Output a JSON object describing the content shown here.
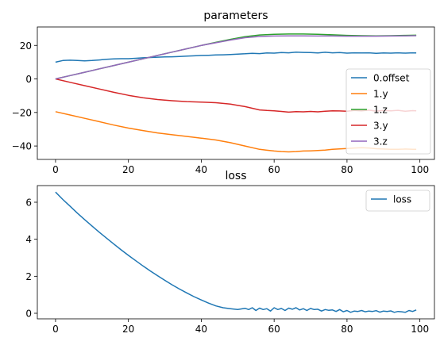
{
  "chart_data": [
    {
      "type": "line",
      "title": "parameters",
      "xlabel": "",
      "ylabel": "",
      "xlim": [
        -5,
        104
      ],
      "ylim": [
        -48,
        31
      ],
      "xticks": [
        0,
        20,
        40,
        60,
        80,
        100
      ],
      "yticks": [
        -40,
        -20,
        0,
        20
      ],
      "grid": false,
      "legend_position": "right",
      "series": [
        {
          "name": "0.offset",
          "color": "#1f77b4",
          "x": [
            0,
            2,
            4,
            6,
            8,
            10,
            12,
            14,
            16,
            18,
            20,
            22,
            24,
            26,
            28,
            30,
            32,
            34,
            36,
            38,
            40,
            42,
            44,
            46,
            48,
            50,
            52,
            54,
            56,
            58,
            60,
            62,
            64,
            66,
            68,
            70,
            72,
            74,
            76,
            78,
            80,
            82,
            84,
            86,
            88,
            90,
            92,
            94,
            96,
            98,
            99
          ],
          "y": [
            10,
            11,
            11.2,
            11,
            10.8,
            11,
            11.3,
            11.7,
            12,
            12.1,
            12.1,
            12.3,
            12.6,
            12.8,
            13,
            13.1,
            13.2,
            13.4,
            13.6,
            13.8,
            14,
            14.1,
            14.3,
            14.4,
            14.6,
            14.8,
            15,
            15.3,
            15.1,
            15.5,
            15.4,
            15.7,
            15.6,
            16,
            15.8,
            15.7,
            15.5,
            15.9,
            15.6,
            15.7,
            15.4,
            15.6,
            15.5,
            15.6,
            15.3,
            15.5,
            15.4,
            15.6,
            15.4,
            15.6,
            15.5
          ]
        },
        {
          "name": "1.y",
          "color": "#ff7f0e",
          "x": [
            0,
            4,
            8,
            12,
            16,
            20,
            24,
            28,
            32,
            36,
            40,
            44,
            48,
            52,
            56,
            58,
            60,
            62,
            64,
            66,
            68,
            70,
            72,
            74,
            76,
            78,
            80,
            82,
            84,
            86,
            88,
            90,
            92,
            94,
            96,
            98,
            99
          ],
          "y": [
            -19.5,
            -21.5,
            -23.5,
            -25.5,
            -27.5,
            -29.3,
            -30.8,
            -32.2,
            -33.3,
            -34.3,
            -35.3,
            -36.4,
            -38,
            -40,
            -42,
            -42.5,
            -43,
            -43.3,
            -43.5,
            -43.3,
            -43,
            -42.9,
            -42.7,
            -42.4,
            -42,
            -41.7,
            -41.5,
            -41.2,
            -41,
            -41.2,
            -41.6,
            -41.8,
            -42,
            -42,
            -41.8,
            -42,
            -42
          ]
        },
        {
          "name": "1.z",
          "color": "#2ca02c",
          "x": [
            0,
            4,
            8,
            12,
            16,
            20,
            24,
            28,
            32,
            36,
            40,
            44,
            48,
            52,
            56,
            60,
            64,
            68,
            72,
            76,
            80,
            84,
            88,
            92,
            96,
            99
          ],
          "y": [
            0,
            2,
            4,
            6,
            8,
            10,
            12,
            14,
            16,
            18,
            20,
            21.8,
            23.6,
            25.2,
            26.2,
            26.6,
            26.8,
            26.8,
            26.6,
            26.3,
            26,
            25.8,
            25.7,
            25.8,
            26,
            26.1
          ]
        },
        {
          "name": "3.y",
          "color": "#d62728",
          "x": [
            0,
            4,
            8,
            12,
            16,
            20,
            24,
            28,
            32,
            36,
            40,
            44,
            48,
            50,
            52,
            54,
            56,
            58,
            60,
            62,
            64,
            66,
            68,
            70,
            72,
            74,
            76,
            78,
            80,
            82,
            84,
            86,
            88,
            90,
            92,
            94,
            96,
            98,
            99
          ],
          "y": [
            0,
            -2,
            -4,
            -6,
            -8,
            -9.8,
            -11.2,
            -12.3,
            -13,
            -13.5,
            -13.8,
            -14.2,
            -15,
            -15.8,
            -16.5,
            -17.5,
            -18.5,
            -18.8,
            -19,
            -19.4,
            -19.8,
            -19.5,
            -19.6,
            -19.4,
            -19.6,
            -19.3,
            -19,
            -19.1,
            -19.3,
            -18.8,
            -19,
            -18.6,
            -19.2,
            -18.8,
            -19,
            -18.7,
            -19.3,
            -18.9,
            -19
          ]
        },
        {
          "name": "3.z",
          "color": "#9467bd",
          "x": [
            0,
            4,
            8,
            12,
            16,
            20,
            24,
            28,
            32,
            36,
            40,
            44,
            48,
            52,
            56,
            60,
            64,
            68,
            72,
            76,
            80,
            84,
            88,
            92,
            96,
            99
          ],
          "y": [
            0,
            2,
            4,
            6,
            8,
            10,
            12,
            14,
            16,
            18,
            20,
            21.6,
            23.2,
            24.6,
            25.3,
            25.6,
            25.7,
            25.7,
            25.6,
            25.6,
            25.5,
            25.5,
            25.5,
            25.6,
            25.7,
            25.8
          ]
        }
      ]
    },
    {
      "type": "line",
      "title": "loss",
      "xlabel": "",
      "ylabel": "",
      "xlim": [
        -5,
        104
      ],
      "ylim": [
        -0.3,
        6.9
      ],
      "xticks": [
        0,
        20,
        40,
        60,
        80,
        100
      ],
      "yticks": [
        0,
        2,
        4,
        6
      ],
      "grid": false,
      "legend_position": "top-right",
      "series": [
        {
          "name": "loss",
          "color": "#1f77b4",
          "x": [
            0,
            2,
            4,
            6,
            8,
            10,
            12,
            14,
            16,
            18,
            20,
            22,
            24,
            26,
            28,
            30,
            32,
            34,
            36,
            38,
            40,
            42,
            44,
            46,
            48,
            50,
            52,
            53,
            54,
            55,
            56,
            57,
            58,
            59,
            60,
            61,
            62,
            63,
            64,
            65,
            66,
            67,
            68,
            69,
            70,
            71,
            72,
            73,
            74,
            75,
            76,
            77,
            78,
            79,
            80,
            81,
            82,
            83,
            84,
            85,
            86,
            87,
            88,
            89,
            90,
            91,
            92,
            93,
            94,
            95,
            96,
            97,
            98,
            99
          ],
          "y": [
            6.55,
            6.15,
            5.78,
            5.41,
            5.06,
            4.72,
            4.38,
            4.06,
            3.74,
            3.43,
            3.13,
            2.84,
            2.56,
            2.29,
            2.03,
            1.78,
            1.54,
            1.31,
            1.1,
            0.9,
            0.72,
            0.55,
            0.4,
            0.3,
            0.25,
            0.2,
            0.27,
            0.2,
            0.3,
            0.15,
            0.28,
            0.2,
            0.25,
            0.12,
            0.3,
            0.2,
            0.26,
            0.15,
            0.28,
            0.22,
            0.3,
            0.18,
            0.25,
            0.15,
            0.26,
            0.2,
            0.22,
            0.12,
            0.2,
            0.16,
            0.18,
            0.1,
            0.2,
            0.08,
            0.15,
            0.05,
            0.12,
            0.1,
            0.15,
            0.08,
            0.12,
            0.1,
            0.14,
            0.06,
            0.12,
            0.1,
            0.13,
            0.05,
            0.1,
            0.08,
            0.05,
            0.15,
            0.1,
            0.18
          ]
        }
      ]
    }
  ]
}
